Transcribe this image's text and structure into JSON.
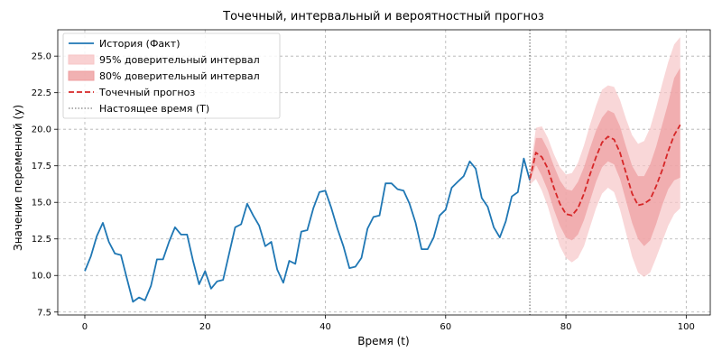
{
  "chart_data": {
    "type": "line",
    "title": "Точечный, интервальный и вероятностный прогноз",
    "xlabel": "Время (t)",
    "ylabel": "Значение переменной (y)",
    "xlim": [
      -4.5,
      104
    ],
    "ylim": [
      7.3,
      26.8
    ],
    "xticks": [
      0,
      20,
      40,
      60,
      80,
      100
    ],
    "yticks": [
      7.5,
      10.0,
      12.5,
      15.0,
      17.5,
      20.0,
      22.5,
      25.0
    ],
    "grid": true,
    "legend_position": "top-left",
    "present_time": 74,
    "colors": {
      "history": "#1f77b4",
      "forecast": "#d62728",
      "band95": "#f7c6c7",
      "band80": "#ee9d9f",
      "present_line": "#808080"
    },
    "series": [
      {
        "name": "История (Факт)",
        "kind": "line",
        "x": [
          0,
          1,
          2,
          3,
          4,
          5,
          6,
          7,
          8,
          9,
          10,
          11,
          12,
          13,
          14,
          15,
          16,
          17,
          18,
          19,
          20,
          21,
          22,
          23,
          24,
          25,
          26,
          27,
          28,
          29,
          30,
          31,
          32,
          33,
          34,
          35,
          36,
          37,
          38,
          39,
          40,
          41,
          42,
          43,
          44,
          45,
          46,
          47,
          48,
          49,
          50,
          51,
          52,
          53,
          54,
          55,
          56,
          57,
          58,
          59,
          60,
          61,
          62,
          63,
          64,
          65,
          66,
          67,
          68,
          69,
          70,
          71,
          72,
          73,
          74
        ],
        "y": [
          10.3,
          11.3,
          12.7,
          13.6,
          12.3,
          11.5,
          11.4,
          9.8,
          8.2,
          8.5,
          8.3,
          9.3,
          11.1,
          11.1,
          12.3,
          13.3,
          12.8,
          12.8,
          11.0,
          9.4,
          10.3,
          9.1,
          9.6,
          9.7,
          11.5,
          13.3,
          13.5,
          14.9,
          14.1,
          13.4,
          12.0,
          12.3,
          10.4,
          9.5,
          11.0,
          10.8,
          13.0,
          13.1,
          14.6,
          15.7,
          15.8,
          14.6,
          13.2,
          12.0,
          10.5,
          10.6,
          11.2,
          13.2,
          14.0,
          14.1,
          16.3,
          16.3,
          15.9,
          15.8,
          14.9,
          13.6,
          11.8,
          11.8,
          12.6,
          14.1,
          14.5,
          16.0,
          16.4,
          16.8,
          17.8,
          17.3,
          15.3,
          14.7,
          13.3,
          12.6,
          13.7,
          15.4,
          15.7,
          18.0,
          16.5
        ]
      },
      {
        "name": "95% доверительный интервал",
        "kind": "band",
        "x": [
          74,
          75,
          76,
          77,
          78,
          79,
          80,
          81,
          82,
          83,
          84,
          85,
          86,
          87,
          88,
          89,
          90,
          91,
          92,
          93,
          94,
          95,
          96,
          97,
          98,
          99
        ],
        "lower": [
          16.2,
          16.6,
          15.8,
          14.7,
          13.3,
          12.0,
          11.2,
          10.9,
          11.2,
          12.0,
          13.3,
          14.6,
          15.6,
          16.0,
          15.7,
          14.5,
          12.9,
          11.3,
          10.2,
          9.9,
          10.2,
          11.2,
          12.3,
          13.4,
          14.2,
          14.6
        ],
        "upper": [
          17.0,
          20.1,
          20.2,
          19.4,
          18.3,
          17.4,
          16.9,
          17.0,
          17.7,
          18.9,
          20.3,
          21.6,
          22.7,
          23.0,
          22.9,
          22.0,
          20.7,
          19.6,
          19.0,
          19.2,
          20.1,
          21.5,
          23.1,
          24.6,
          25.8,
          26.3
        ]
      },
      {
        "name": "80% доверительный интервал",
        "kind": "band",
        "x": [
          74,
          75,
          76,
          77,
          78,
          79,
          80,
          81,
          82,
          83,
          84,
          85,
          86,
          87,
          88,
          89,
          90,
          91,
          92,
          93,
          94,
          95,
          96,
          97,
          98,
          99
        ],
        "lower": [
          16.4,
          17.6,
          16.8,
          15.8,
          14.5,
          13.4,
          12.6,
          12.4,
          12.8,
          13.8,
          15.1,
          16.4,
          17.4,
          17.8,
          17.6,
          16.6,
          15.1,
          13.6,
          12.5,
          12.0,
          12.4,
          13.5,
          14.8,
          15.9,
          16.5,
          16.7
        ],
        "upper": [
          16.8,
          19.4,
          19.4,
          18.6,
          17.5,
          16.5,
          15.9,
          15.8,
          16.4,
          17.4,
          18.7,
          19.9,
          20.8,
          21.3,
          21.1,
          20.2,
          18.8,
          17.5,
          16.8,
          16.8,
          17.6,
          18.8,
          20.3,
          21.8,
          23.5,
          24.2
        ]
      },
      {
        "name": "Точечный прогноз",
        "kind": "dashed-line",
        "x": [
          74,
          75,
          76,
          77,
          78,
          79,
          80,
          81,
          82,
          83,
          84,
          85,
          86,
          87,
          88,
          89,
          90,
          91,
          92,
          93,
          94,
          95,
          96,
          97,
          98,
          99
        ],
        "y": [
          16.6,
          18.4,
          18.1,
          17.3,
          16.0,
          14.9,
          14.2,
          14.1,
          14.6,
          15.6,
          16.9,
          18.1,
          19.1,
          19.5,
          19.3,
          18.4,
          17.0,
          15.6,
          14.8,
          14.9,
          15.2,
          16.1,
          17.2,
          18.5,
          19.6,
          20.3
        ]
      },
      {
        "name": "Настоящее время (T)",
        "kind": "vline",
        "x": 74
      }
    ]
  }
}
